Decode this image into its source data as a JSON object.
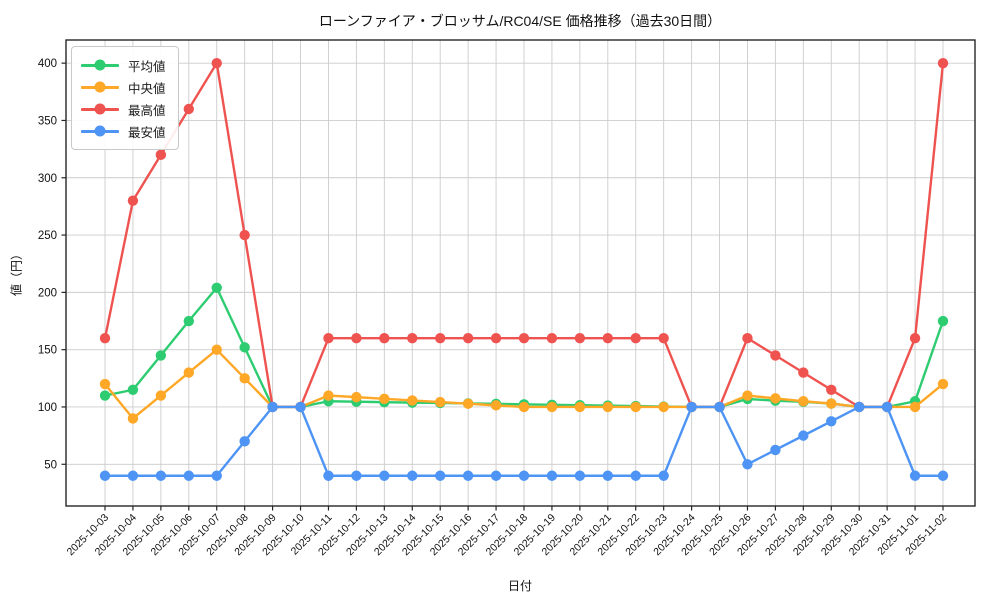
{
  "chart_data": {
    "type": "line",
    "title": "ローンファイア・ブロッサム/RC04/SE 価格推移（過去30日間）",
    "xlabel": "日付",
    "ylabel": "値（円）",
    "x": [
      "2025-10-03",
      "2025-10-04",
      "2025-10-05",
      "2025-10-06",
      "2025-10-07",
      "2025-10-08",
      "2025-10-09",
      "2025-10-10",
      "2025-10-11",
      "2025-10-12",
      "2025-10-13",
      "2025-10-14",
      "2025-10-15",
      "2025-10-16",
      "2025-10-17",
      "2025-10-18",
      "2025-10-19",
      "2025-10-20",
      "2025-10-21",
      "2025-10-22",
      "2025-10-23",
      "2025-10-24",
      "2025-10-25",
      "2025-10-26",
      "2025-10-27",
      "2025-10-28",
      "2025-10-29",
      "2025-10-30",
      "2025-10-31",
      "2025-11-01",
      "2025-11-02"
    ],
    "series": [
      {
        "name": "平均値",
        "color": "#2ecc71",
        "values": [
          110,
          115,
          145,
          175,
          204,
          152,
          100,
          100,
          105,
          104.6,
          104.2,
          103.8,
          103.5,
          103.1,
          102.7,
          102.3,
          101.9,
          101.5,
          101.2,
          100.8,
          100.4,
          100,
          100,
          107,
          105.5,
          104.5,
          103,
          100,
          100,
          105,
          175
        ]
      },
      {
        "name": "中央値",
        "color": "#ffa726",
        "values": [
          120,
          90,
          110,
          130,
          150,
          125,
          100,
          100,
          110,
          108.6,
          107.1,
          105.7,
          104.3,
          102.9,
          101.4,
          100,
          100,
          100,
          100,
          100,
          100,
          100,
          100,
          110,
          107.5,
          105,
          103,
          100,
          100,
          100,
          120
        ]
      },
      {
        "name": "最高値",
        "color": "#ef5350",
        "values": [
          160,
          280,
          320,
          360,
          400,
          250,
          100,
          100,
          160,
          160,
          160,
          160,
          160,
          160,
          160,
          160,
          160,
          160,
          160,
          160,
          160,
          100,
          100,
          160,
          145,
          130,
          115,
          100,
          100,
          160,
          400
        ]
      },
      {
        "name": "最安値",
        "color": "#4d94f5",
        "values": [
          40,
          40,
          40,
          40,
          40,
          70,
          100,
          100,
          40,
          40,
          40,
          40,
          40,
          40,
          40,
          40,
          40,
          40,
          40,
          40,
          40,
          100,
          100,
          50,
          62.5,
          75,
          87.5,
          100,
          100,
          40,
          40
        ]
      }
    ],
    "yticks": [
      50,
      100,
      150,
      200,
      250,
      300,
      350,
      400
    ],
    "ylim": [
      13.6,
      420.2
    ],
    "grid": true,
    "legend_position": "upper-left"
  }
}
